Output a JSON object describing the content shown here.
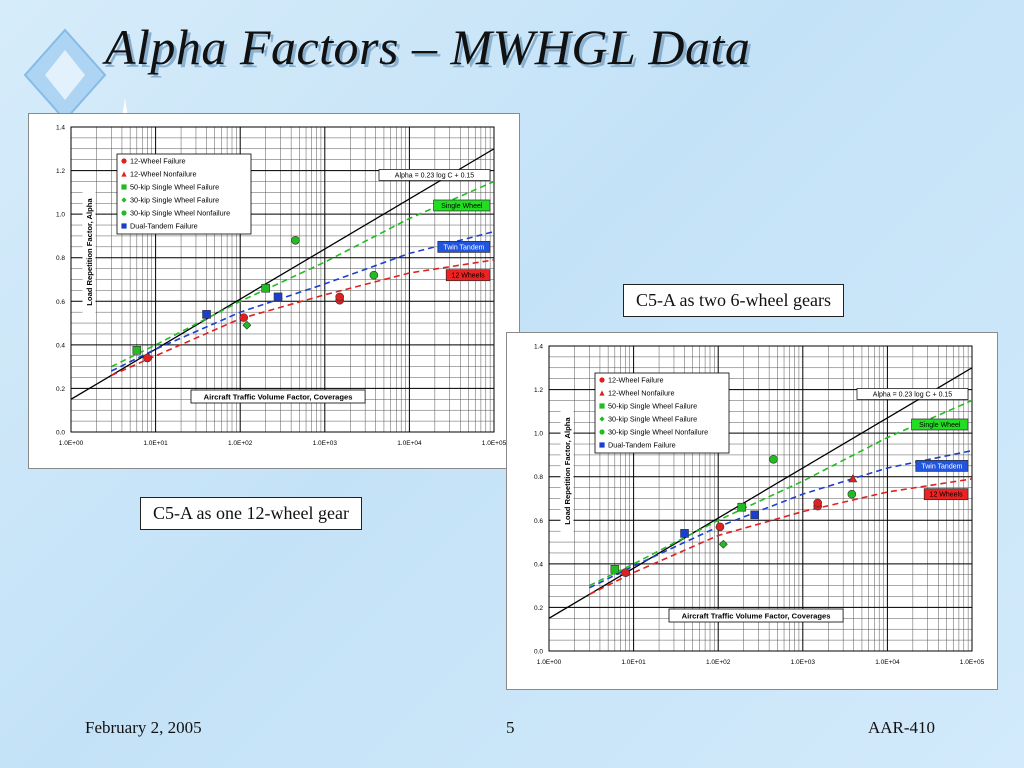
{
  "slide": {
    "title": "Alpha Factors – MWHGL Data",
    "footer_date": "February 2, 2005",
    "footer_page": "5",
    "footer_code": "AAR-410",
    "caption_top": "C5-A as two 6-wheel gears",
    "caption_bottom": "C5-A as one 12-wheel gear"
  },
  "colors": {
    "background": "#cfe6f8",
    "failure_12wheel": "#e02020",
    "single_wheel": "#22bb22",
    "dual_tandem": "#1a3fcf",
    "alpha_line": "#000000"
  },
  "chart_data": [
    {
      "type": "scatter",
      "x_scale": "log",
      "xlim": [
        1,
        100000
      ],
      "ylim": [
        0,
        1.4
      ],
      "xticks": [
        "1.0E+00",
        "1.0E+01",
        "1.0E+02",
        "1.0E+03",
        "1.0E+04",
        "1.0E+05"
      ],
      "yticks": [
        "0.0",
        "0.2",
        "0.4",
        "0.6",
        "0.8",
        "1.0",
        "1.2",
        "1.4"
      ],
      "xlabel": "Aircraft Traffic Volume Factor, Coverages",
      "ylabel": "Load Repetition Factor, Alpha",
      "grid": true,
      "legend_position": "top-left",
      "legend": [
        {
          "label": "12-Wheel Failure",
          "marker": "circle",
          "color": "#e02020"
        },
        {
          "label": "12-Wheel Nonfailure",
          "marker": "triangle",
          "color": "#e02020"
        },
        {
          "label": "50-kip Single Wheel Failure",
          "marker": "square",
          "color": "#22bb22"
        },
        {
          "label": "30-kip Single Wheel Failure",
          "marker": "diamond",
          "color": "#22bb22"
        },
        {
          "label": "30-kip Single Wheel Nonfailure",
          "marker": "circle",
          "color": "#22bb22"
        },
        {
          "label": "Dual-Tandem Failure",
          "marker": "square",
          "color": "#1a3fcf"
        }
      ],
      "series": [
        {
          "name": "12-Wheel Failure",
          "marker": "circle",
          "color": "#e02020",
          "points": [
            [
              8,
              0.34
            ],
            [
              110,
              0.525
            ],
            [
              1500,
              0.605
            ],
            [
              1500,
              0.62
            ]
          ]
        },
        {
          "name": "12-Wheel Nonfailure",
          "marker": "triangle",
          "color": "#e02020",
          "points": []
        },
        {
          "name": "50-kip Single Wheel Failure",
          "marker": "square",
          "color": "#22bb22",
          "points": [
            [
              6,
              0.375
            ],
            [
              200,
              0.66
            ]
          ]
        },
        {
          "name": "30-kip Single Wheel Failure",
          "marker": "diamond",
          "color": "#22bb22",
          "points": [
            [
              120,
              0.49
            ]
          ]
        },
        {
          "name": "30-kip Single Wheel Nonfailure",
          "marker": "circle",
          "color": "#22bb22",
          "points": [
            [
              450,
              0.88
            ],
            [
              3800,
              0.72
            ]
          ]
        },
        {
          "name": "Dual-Tandem Failure",
          "marker": "square",
          "color": "#1a3fcf",
          "points": [
            [
              40,
              0.54
            ],
            [
              280,
              0.62
            ]
          ]
        }
      ],
      "fit_lines": [
        {
          "label": "Alpha = 0.23 log C + 0.15",
          "color": "#000000",
          "dash": false,
          "points": [
            [
              1,
              0.15
            ],
            [
              100000,
              1.3
            ]
          ]
        },
        {
          "label": "Single Wheel",
          "color": "#22bb22",
          "dash": true,
          "points": [
            [
              3,
              0.3
            ],
            [
              10,
              0.4
            ],
            [
              100,
              0.6
            ],
            [
              1000,
              0.78
            ],
            [
              10000,
              0.98
            ],
            [
              100000,
              1.15
            ]
          ]
        },
        {
          "label": "Twin Tandem",
          "color": "#1a3fcf",
          "dash": true,
          "points": [
            [
              3,
              0.28
            ],
            [
              10,
              0.38
            ],
            [
              100,
              0.55
            ],
            [
              1000,
              0.68
            ],
            [
              10000,
              0.82
            ],
            [
              100000,
              0.92
            ]
          ]
        },
        {
          "label": "12 Wheels",
          "color": "#e02020",
          "dash": true,
          "points": [
            [
              3,
              0.26
            ],
            [
              10,
              0.35
            ],
            [
              100,
              0.52
            ],
            [
              1000,
              0.63
            ],
            [
              10000,
              0.73
            ],
            [
              100000,
              0.79
            ]
          ]
        }
      ]
    },
    {
      "type": "scatter",
      "x_scale": "log",
      "xlim": [
        1,
        100000
      ],
      "ylim": [
        0,
        1.4
      ],
      "xticks": [
        "1.0E+00",
        "1.0E+01",
        "1.0E+02",
        "1.0E+03",
        "1.0E+04",
        "1.0E+05"
      ],
      "yticks": [
        "0.0",
        "0.2",
        "0.4",
        "0.6",
        "0.8",
        "1.0",
        "1.2",
        "1.4"
      ],
      "xlabel": "Aircraft Traffic Volume Factor, Coverages",
      "ylabel": "Load Repetition Factor, Alpha",
      "grid": true,
      "legend_position": "top-left",
      "legend": [
        {
          "label": "12-Wheel Failure",
          "marker": "circle",
          "color": "#e02020"
        },
        {
          "label": "12-Wheel Nonfailure",
          "marker": "triangle",
          "color": "#e02020"
        },
        {
          "label": "50-kip Single Wheel Failure",
          "marker": "square",
          "color": "#22bb22"
        },
        {
          "label": "30-kip Single Wheel Failure",
          "marker": "diamond",
          "color": "#22bb22"
        },
        {
          "label": "30-kip Single Wheel Nonfailure",
          "marker": "circle",
          "color": "#22bb22"
        },
        {
          "label": "Dual-Tandem Failure",
          "marker": "square",
          "color": "#1a3fcf"
        }
      ],
      "series": [
        {
          "name": "12-Wheel Failure",
          "marker": "circle",
          "color": "#e02020",
          "points": [
            [
              8,
              0.36
            ],
            [
              105,
              0.57
            ],
            [
              1500,
              0.665
            ],
            [
              1500,
              0.68
            ]
          ]
        },
        {
          "name": "12-Wheel Nonfailure",
          "marker": "triangle",
          "color": "#e02020",
          "points": [
            [
              3900,
              0.79
            ]
          ]
        },
        {
          "name": "50-kip Single Wheel Failure",
          "marker": "square",
          "color": "#22bb22",
          "points": [
            [
              6,
              0.375
            ],
            [
              190,
              0.66
            ]
          ]
        },
        {
          "name": "30-kip Single Wheel Failure",
          "marker": "diamond",
          "color": "#22bb22",
          "points": [
            [
              115,
              0.49
            ]
          ]
        },
        {
          "name": "30-kip Single Wheel Nonfailure",
          "marker": "circle",
          "color": "#22bb22",
          "points": [
            [
              450,
              0.88
            ],
            [
              3800,
              0.72
            ]
          ]
        },
        {
          "name": "Dual-Tandem Failure",
          "marker": "square",
          "color": "#1a3fcf",
          "points": [
            [
              40,
              0.54
            ],
            [
              270,
              0.625
            ]
          ]
        }
      ],
      "fit_lines": [
        {
          "label": "Alpha = 0.23 log C + 0.15",
          "color": "#000000",
          "dash": false,
          "points": [
            [
              1,
              0.15
            ],
            [
              100000,
              1.3
            ]
          ]
        },
        {
          "label": "Single Wheel",
          "color": "#22bb22",
          "dash": true,
          "points": [
            [
              3,
              0.3
            ],
            [
              10,
              0.4
            ],
            [
              100,
              0.6
            ],
            [
              1000,
              0.78
            ],
            [
              10000,
              0.98
            ],
            [
              100000,
              1.15
            ]
          ]
        },
        {
          "label": "Twin Tandem",
          "color": "#1a3fcf",
          "dash": true,
          "points": [
            [
              3,
              0.29
            ],
            [
              10,
              0.39
            ],
            [
              100,
              0.57
            ],
            [
              1000,
              0.72
            ],
            [
              10000,
              0.84
            ],
            [
              100000,
              0.92
            ]
          ]
        },
        {
          "label": "12 Wheels",
          "color": "#e02020",
          "dash": true,
          "points": [
            [
              3,
              0.26
            ],
            [
              10,
              0.36
            ],
            [
              100,
              0.53
            ],
            [
              1000,
              0.64
            ],
            [
              10000,
              0.73
            ],
            [
              100000,
              0.79
            ]
          ]
        }
      ]
    }
  ]
}
